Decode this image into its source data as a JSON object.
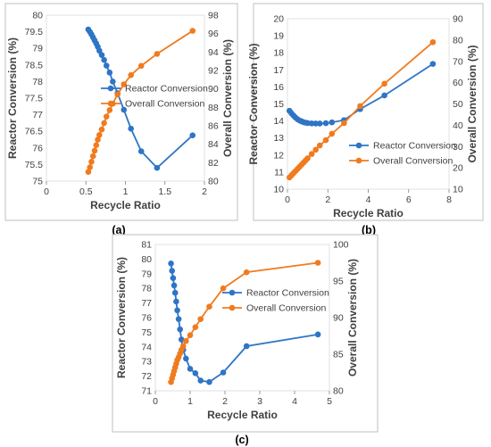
{
  "colors": {
    "reactor": "#2E75C5",
    "overall": "#F07B1F",
    "frame": "#BFBFBF",
    "text": "#404040"
  },
  "chart_data": [
    {
      "type": "line",
      "caption": "(a)",
      "xlabel": "Recycle Ratio",
      "ylabel_left": "Reactor Conversion (%)",
      "ylabel_right": "Overall Conversion (%)",
      "xlim": [
        0,
        2
      ],
      "xticks": [
        "0",
        "0.5",
        "1",
        "1.5",
        "2"
      ],
      "ylim_left": [
        75,
        80
      ],
      "yticks_left": [
        "75",
        "75.5",
        "76",
        "76.5",
        "77",
        "77.5",
        "78",
        "78.5",
        "79",
        "79.5",
        "80"
      ],
      "ylim_right": [
        80,
        98
      ],
      "yticks_right": [
        "80",
        "82",
        "84",
        "86",
        "88",
        "90",
        "92",
        "94",
        "96",
        "98"
      ],
      "legend": "right",
      "series": [
        {
          "name": "Reactor Conversion",
          "axis": "left",
          "x": [
            0.53,
            0.55,
            0.57,
            0.59,
            0.61,
            0.63,
            0.65,
            0.67,
            0.7,
            0.73,
            0.76,
            0.8,
            0.84,
            0.9,
            0.98,
            1.07,
            1.2,
            1.4,
            1.85
          ],
          "y": [
            79.57,
            79.5,
            79.42,
            79.33,
            79.24,
            79.15,
            79.05,
            78.93,
            78.8,
            78.65,
            78.48,
            78.27,
            78.0,
            77.65,
            77.15,
            76.58,
            75.9,
            75.4,
            76.38
          ]
        },
        {
          "name": "Overall Conversion",
          "axis": "right",
          "x": [
            0.53,
            0.55,
            0.57,
            0.59,
            0.61,
            0.63,
            0.65,
            0.67,
            0.7,
            0.73,
            0.76,
            0.8,
            0.84,
            0.9,
            0.98,
            1.07,
            1.2,
            1.4,
            1.85
          ],
          "y": [
            81.0,
            81.5,
            82.1,
            82.7,
            83.3,
            83.9,
            84.5,
            85.0,
            85.6,
            86.3,
            87.0,
            87.7,
            88.4,
            89.4,
            90.5,
            91.5,
            92.5,
            93.8,
            96.3
          ]
        }
      ]
    },
    {
      "type": "line",
      "caption": "(b)",
      "xlabel": "Recycle Ratio",
      "ylabel_left": "Reactor Conversion (%)",
      "ylabel_right": "Overall Conversion (%)",
      "xlim": [
        0,
        8
      ],
      "xticks": [
        "0",
        "2",
        "4",
        "6",
        "8"
      ],
      "ylim_left": [
        10,
        20
      ],
      "yticks_left": [
        "10",
        "11",
        "12",
        "13",
        "14",
        "15",
        "16",
        "17",
        "18",
        "19",
        "20"
      ],
      "ylim_right": [
        10,
        90
      ],
      "yticks_right": [
        "10",
        "20",
        "30",
        "40",
        "50",
        "60",
        "70",
        "80",
        "90"
      ],
      "legend": "right",
      "series": [
        {
          "name": "Reactor Conversion",
          "axis": "left",
          "x": [
            0.1,
            0.2,
            0.3,
            0.4,
            0.5,
            0.6,
            0.7,
            0.8,
            0.9,
            1.0,
            1.2,
            1.4,
            1.6,
            1.9,
            2.2,
            2.8,
            3.6,
            4.8,
            7.2
          ],
          "y": [
            14.6,
            14.45,
            14.32,
            14.2,
            14.1,
            14.03,
            13.98,
            13.93,
            13.9,
            13.88,
            13.86,
            13.85,
            13.85,
            13.87,
            13.92,
            14.05,
            14.7,
            15.5,
            17.35
          ]
        },
        {
          "name": "Overall Conversion",
          "axis": "right",
          "x": [
            0.1,
            0.2,
            0.3,
            0.4,
            0.5,
            0.6,
            0.7,
            0.8,
            0.9,
            1.0,
            1.2,
            1.4,
            1.6,
            1.9,
            2.2,
            2.8,
            3.6,
            4.8,
            7.2
          ],
          "y": [
            15.5,
            16.5,
            17.5,
            18.5,
            19.5,
            20.5,
            21.5,
            22.5,
            23.5,
            24.5,
            26.5,
            28.5,
            30.5,
            33.0,
            36.0,
            41.0,
            49.0,
            59.5,
            79.0
          ]
        }
      ]
    },
    {
      "type": "line",
      "caption": "(c)",
      "xlabel": "Recycle Ratio",
      "ylabel_left": "Reactor Conversion (%)",
      "ylabel_right": "Overall Conversion (%)",
      "xlim": [
        0,
        5
      ],
      "xticks": [
        "0",
        "1",
        "2",
        "3",
        "4",
        "5"
      ],
      "ylim_left": [
        71,
        81
      ],
      "yticks_left": [
        "71",
        "72",
        "73",
        "74",
        "75",
        "76",
        "77",
        "78",
        "79",
        "80",
        "81"
      ],
      "ylim_right": [
        80,
        100
      ],
      "yticks_right": [
        "80",
        "85",
        "90",
        "95",
        "100"
      ],
      "legend": "right",
      "series": [
        {
          "name": "Reactor Conversion",
          "axis": "left",
          "x": [
            0.45,
            0.48,
            0.51,
            0.54,
            0.57,
            0.6,
            0.63,
            0.67,
            0.71,
            0.75,
            0.8,
            0.88,
            1.0,
            1.15,
            1.3,
            1.55,
            1.95,
            2.62,
            4.67
          ],
          "y": [
            79.7,
            79.2,
            78.7,
            78.2,
            77.7,
            77.1,
            76.5,
            75.9,
            75.2,
            74.5,
            73.8,
            73.2,
            72.5,
            72.2,
            71.7,
            71.6,
            72.25,
            74.05,
            74.85
          ]
        },
        {
          "name": "Overall Conversion",
          "axis": "right",
          "x": [
            0.45,
            0.48,
            0.51,
            0.54,
            0.57,
            0.6,
            0.63,
            0.67,
            0.71,
            0.75,
            0.8,
            0.88,
            1.0,
            1.15,
            1.3,
            1.55,
            1.95,
            2.62,
            4.67
          ],
          "y": [
            81.2,
            81.7,
            82.2,
            82.7,
            83.2,
            83.7,
            84.2,
            84.6,
            85.1,
            85.6,
            86.1,
            86.8,
            87.6,
            88.7,
            89.8,
            91.5,
            94.0,
            96.2,
            97.5
          ]
        }
      ]
    }
  ]
}
